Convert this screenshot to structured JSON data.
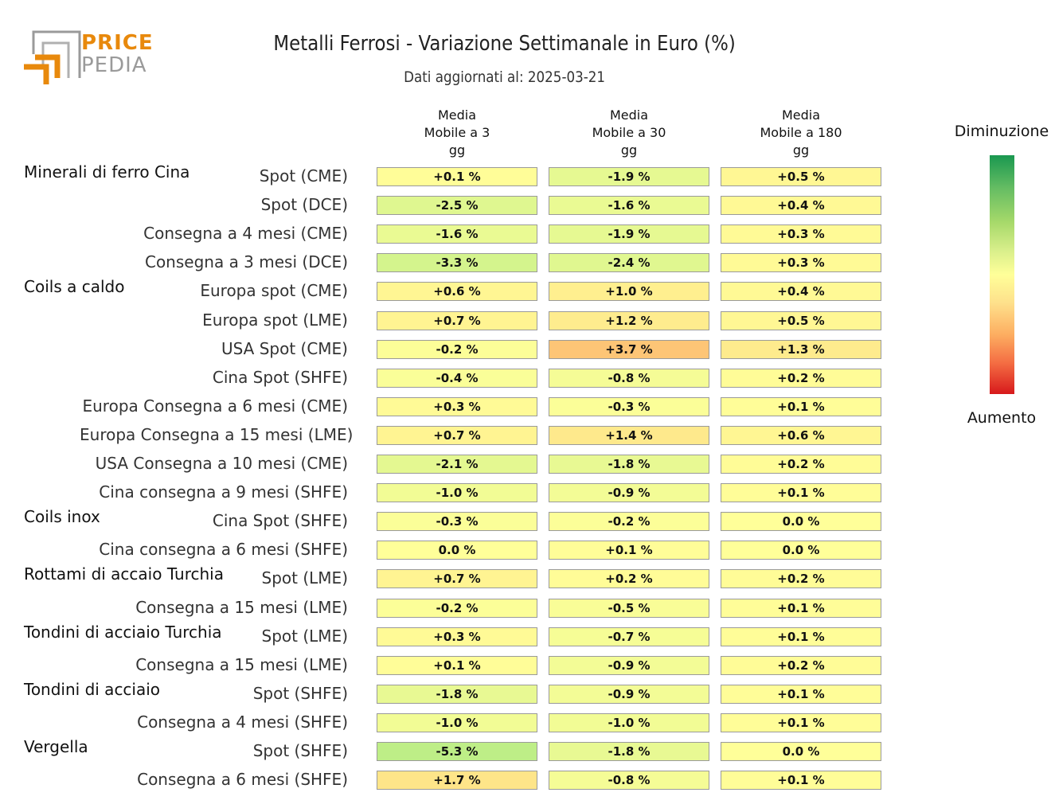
{
  "logo": {
    "line1": "PRICE",
    "line2": "PEDIA",
    "accent_color": "#e8890c",
    "gray_color": "#9a9a9a"
  },
  "chart_data": {
    "type": "heatmap",
    "title": "Metalli Ferrosi - Variazione Settimanale in Euro (%)",
    "subtitle": "Dati aggiornati al: 2025-03-21",
    "columns": [
      "Media\nMobile a 3\ngg",
      "Media\nMobile a 30\ngg",
      "Media\nMobile a 180\ngg"
    ],
    "legend": {
      "top": "Diminuzione",
      "bottom": "Aumento"
    },
    "groups": [
      {
        "name": "Minerali di ferro Cina",
        "rows": [
          {
            "label": "Spot (CME)",
            "values": [
              0.1,
              -1.9,
              0.5
            ],
            "text": [
              "+0.1 %",
              "-1.9 %",
              "+0.5 %"
            ]
          },
          {
            "label": "Spot (DCE)",
            "values": [
              -2.5,
              -1.6,
              0.4
            ],
            "text": [
              "-2.5 %",
              "-1.6 %",
              "+0.4 %"
            ]
          },
          {
            "label": "Consegna a 4 mesi (CME)",
            "values": [
              -1.6,
              -1.9,
              0.3
            ],
            "text": [
              "-1.6 %",
              "-1.9 %",
              "+0.3 %"
            ]
          },
          {
            "label": "Consegna a 3 mesi (DCE)",
            "values": [
              -3.3,
              -2.4,
              0.3
            ],
            "text": [
              "-3.3 %",
              "-2.4 %",
              "+0.3 %"
            ]
          }
        ]
      },
      {
        "name": "Coils a caldo",
        "rows": [
          {
            "label": "Europa spot (CME)",
            "values": [
              0.6,
              1.0,
              0.4
            ],
            "text": [
              "+0.6 %",
              "+1.0 %",
              "+0.4 %"
            ]
          },
          {
            "label": "Europa spot (LME)",
            "values": [
              0.7,
              1.2,
              0.5
            ],
            "text": [
              "+0.7 %",
              "+1.2 %",
              "+0.5 %"
            ]
          },
          {
            "label": "USA Spot (CME)",
            "values": [
              -0.2,
              3.7,
              1.3
            ],
            "text": [
              "-0.2 %",
              "+3.7 %",
              "+1.3 %"
            ]
          },
          {
            "label": "Cina Spot (SHFE)",
            "values": [
              -0.4,
              -0.8,
              0.2
            ],
            "text": [
              "-0.4 %",
              "-0.8 %",
              "+0.2 %"
            ]
          },
          {
            "label": "Europa Consegna a 6 mesi (CME)",
            "values": [
              0.3,
              -0.3,
              0.1
            ],
            "text": [
              "+0.3 %",
              "-0.3 %",
              "+0.1 %"
            ]
          },
          {
            "label": "Europa Consegna a 15 mesi (LME)",
            "values": [
              0.7,
              1.4,
              0.6
            ],
            "text": [
              "+0.7 %",
              "+1.4 %",
              "+0.6 %"
            ]
          },
          {
            "label": "USA Consegna a 10 mesi (CME)",
            "values": [
              -2.1,
              -1.8,
              0.2
            ],
            "text": [
              "-2.1 %",
              "-1.8 %",
              "+0.2 %"
            ]
          },
          {
            "label": "Cina consegna a 9 mesi (SHFE)",
            "values": [
              -1.0,
              -0.9,
              0.1
            ],
            "text": [
              "-1.0 %",
              "-0.9 %",
              "+0.1 %"
            ]
          }
        ]
      },
      {
        "name": "Coils inox",
        "rows": [
          {
            "label": "Cina Spot (SHFE)",
            "values": [
              -0.3,
              -0.2,
              0.0
            ],
            "text": [
              "-0.3 %",
              "-0.2 %",
              "0.0 %"
            ]
          },
          {
            "label": "Cina consegna a 6 mesi (SHFE)",
            "values": [
              0.0,
              0.1,
              0.0
            ],
            "text": [
              "0.0 %",
              "+0.1 %",
              "0.0 %"
            ]
          }
        ]
      },
      {
        "name": "Rottami di accaio Turchia",
        "rows": [
          {
            "label": "Spot (LME)",
            "values": [
              0.7,
              0.2,
              0.2
            ],
            "text": [
              "+0.7 %",
              "+0.2 %",
              "+0.2 %"
            ]
          },
          {
            "label": "Consegna a 15 mesi (LME)",
            "values": [
              -0.2,
              -0.5,
              0.1
            ],
            "text": [
              "-0.2 %",
              "-0.5 %",
              "+0.1 %"
            ]
          }
        ]
      },
      {
        "name": "Tondini di acciaio Turchia",
        "rows": [
          {
            "label": "Spot (LME)",
            "values": [
              0.3,
              -0.7,
              0.1
            ],
            "text": [
              "+0.3 %",
              "-0.7 %",
              "+0.1 %"
            ]
          },
          {
            "label": "Consegna a 15 mesi (LME)",
            "values": [
              0.1,
              -0.9,
              0.2
            ],
            "text": [
              "+0.1 %",
              "-0.9 %",
              "+0.2 %"
            ]
          }
        ]
      },
      {
        "name": "Tondini di acciaio",
        "rows": [
          {
            "label": "Spot (SHFE)",
            "values": [
              -1.8,
              -0.9,
              0.1
            ],
            "text": [
              "-1.8 %",
              "-0.9 %",
              "+0.1 %"
            ]
          },
          {
            "label": "Consegna a 4 mesi (SHFE)",
            "values": [
              -1.0,
              -1.0,
              0.1
            ],
            "text": [
              "-1.0 %",
              "-1.0 %",
              "+0.1 %"
            ]
          }
        ]
      },
      {
        "name": "Vergella",
        "rows": [
          {
            "label": "Spot (SHFE)",
            "values": [
              -5.3,
              -1.8,
              0.0
            ],
            "text": [
              "-5.3 %",
              "-1.8 %",
              "0.0 %"
            ]
          },
          {
            "label": "Consegna a 6 mesi (SHFE)",
            "values": [
              1.7,
              -0.8,
              0.1
            ],
            "text": [
              "+1.7 %",
              "-0.8 %",
              "+0.1 %"
            ]
          }
        ]
      }
    ]
  }
}
